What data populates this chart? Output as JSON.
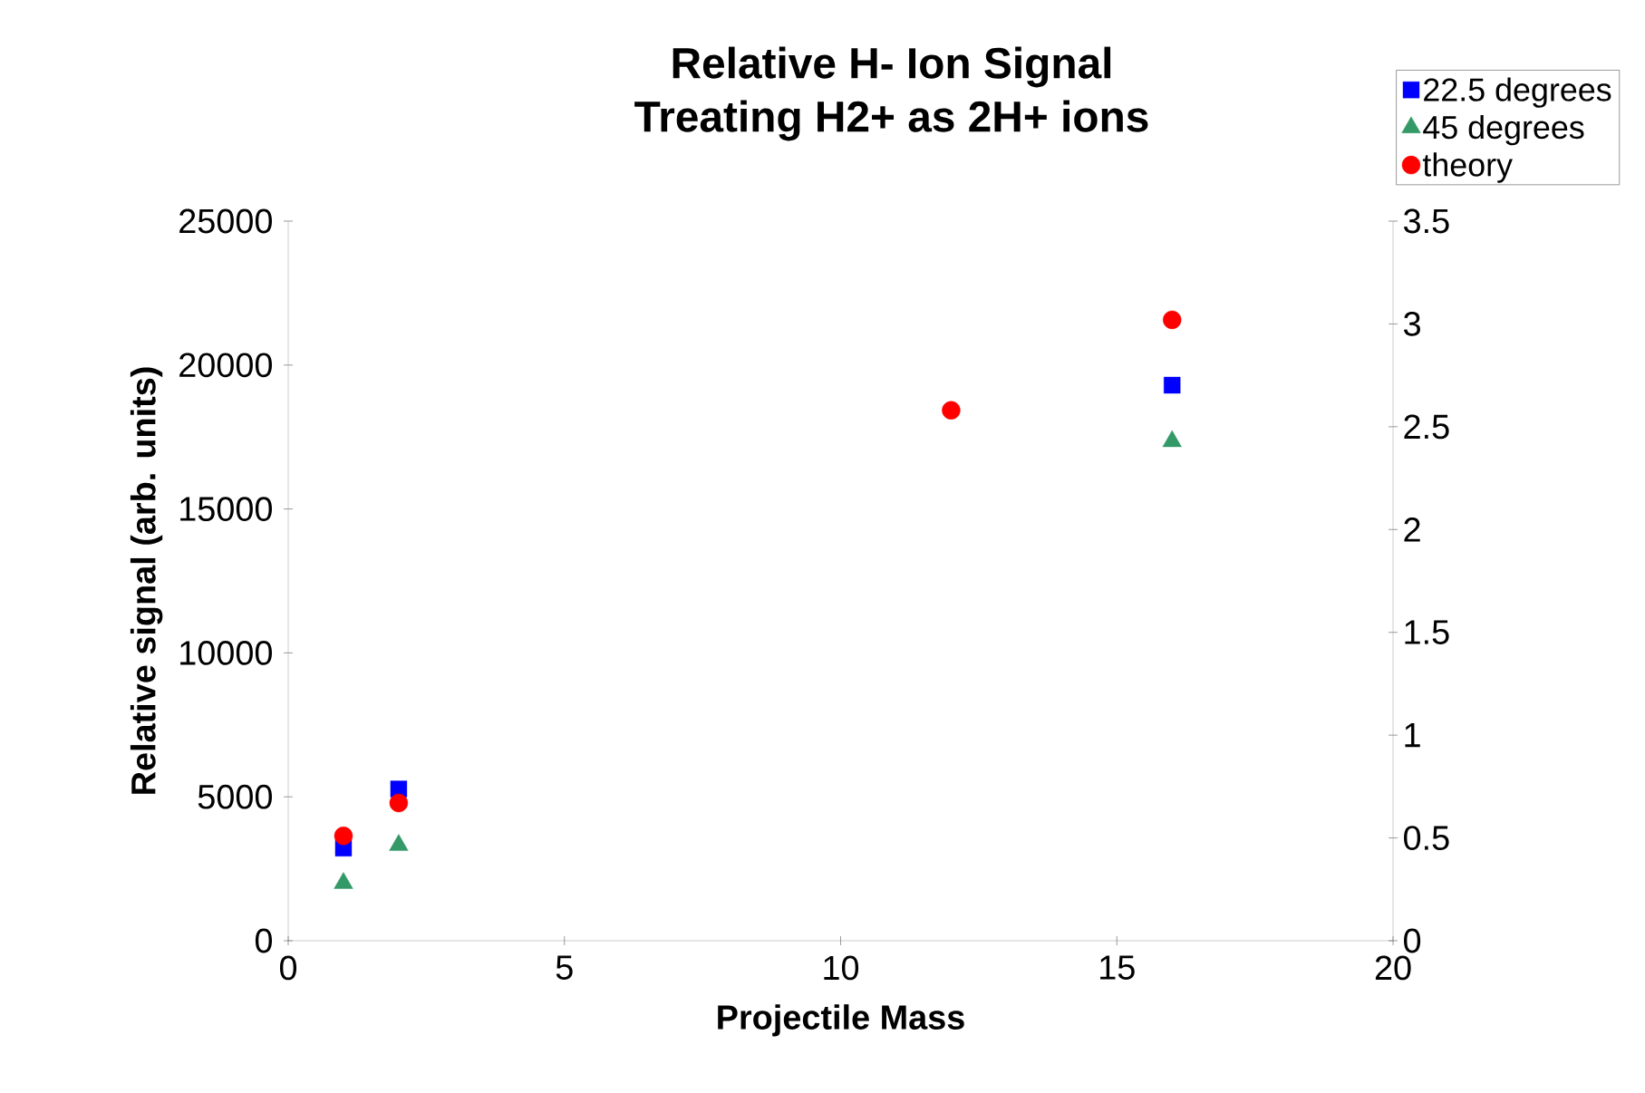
{
  "chart_data": {
    "type": "scatter",
    "title": "Relative H- Ion Signal",
    "subtitle": "Treating H2+ as 2H+ ions",
    "xlabel": "Projectile Mass",
    "ylabel": "Relative signal (arb. units)",
    "x": [
      1,
      2,
      12,
      16
    ],
    "series": [
      {
        "name": "22.5 degrees",
        "color": "#0000ff",
        "marker": "square",
        "values": [
          3220,
          5270,
          null,
          19300
        ]
      },
      {
        "name": "45 degrees",
        "color": "#339966",
        "marker": "triangle",
        "values": [
          2000,
          3320,
          null,
          17350
        ]
      },
      {
        "name": "theory",
        "color": "#ff0000",
        "marker": "circle",
        "axis": "y2",
        "values": [
          0.51,
          0.67,
          2.58,
          3.02
        ]
      }
    ],
    "xlim": [
      0,
      20
    ],
    "xticks": [
      0,
      5,
      10,
      15,
      20
    ],
    "ylim": [
      0,
      25000
    ],
    "yticks": [
      0,
      5000,
      10000,
      15000,
      20000,
      25000
    ],
    "y2lim": [
      0,
      3.5
    ],
    "y2ticks": [
      0,
      0.5,
      1,
      1.5,
      2,
      2.5,
      3,
      3.5
    ],
    "grid": false,
    "legend": "top right"
  }
}
